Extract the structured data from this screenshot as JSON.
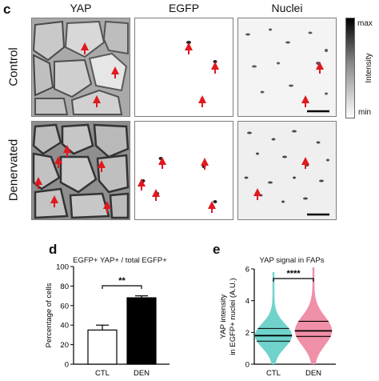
{
  "panel_c": {
    "letter": "c",
    "columns": [
      "YAP",
      "EGFP",
      "Nuclei"
    ],
    "rows": [
      "Control",
      "Denervated"
    ],
    "colorbar": {
      "max_label": "max",
      "min_label": "min",
      "axis_label": "Intensity"
    }
  },
  "panel_d": {
    "letter": "d",
    "title": "EGFP+ YAP+ / total EGFP+",
    "ylabel": "Percentage of cells",
    "significance": "**"
  },
  "panel_e": {
    "letter": "e",
    "title": "YAP signal in FAPs",
    "ylabel_line1": "YAP intensity",
    "ylabel_line2": "in EGFP+ nuclei (A.U.)",
    "significance": "****"
  },
  "colors": {
    "arrow": "#e0191f",
    "ctl_violin": "#6fd3cb",
    "den_violin": "#ef8fa8",
    "ctl_bar": "#ffffff",
    "den_bar": "#000000"
  },
  "chart_data": [
    {
      "type": "bar",
      "categories": [
        "CTL",
        "DEN"
      ],
      "values": [
        35,
        68
      ],
      "errors": [
        5,
        2
      ],
      "title": "EGFP+ YAP+ / total EGFP+",
      "xlabel": "",
      "ylabel": "Percentage of cells",
      "ylim": [
        0,
        100
      ],
      "yticks": [
        0,
        20,
        40,
        60,
        80,
        100
      ],
      "grid": false
    },
    {
      "type": "violin",
      "categories": [
        "CTL",
        "DEN"
      ],
      "medians": [
        1.8,
        2.1
      ],
      "quartiles": [
        [
          1.45,
          2.25
        ],
        [
          1.75,
          2.7
        ]
      ],
      "ranges": [
        [
          0,
          5.8
        ],
        [
          0,
          6.1
        ]
      ],
      "title": "YAP signal in FAPs",
      "xlabel": "",
      "ylabel": "YAP intensity in EGFP+ nuclei (A.U.)",
      "ylim": [
        0,
        6
      ],
      "yticks": [
        0,
        2,
        4,
        6
      ],
      "grid": false
    }
  ]
}
